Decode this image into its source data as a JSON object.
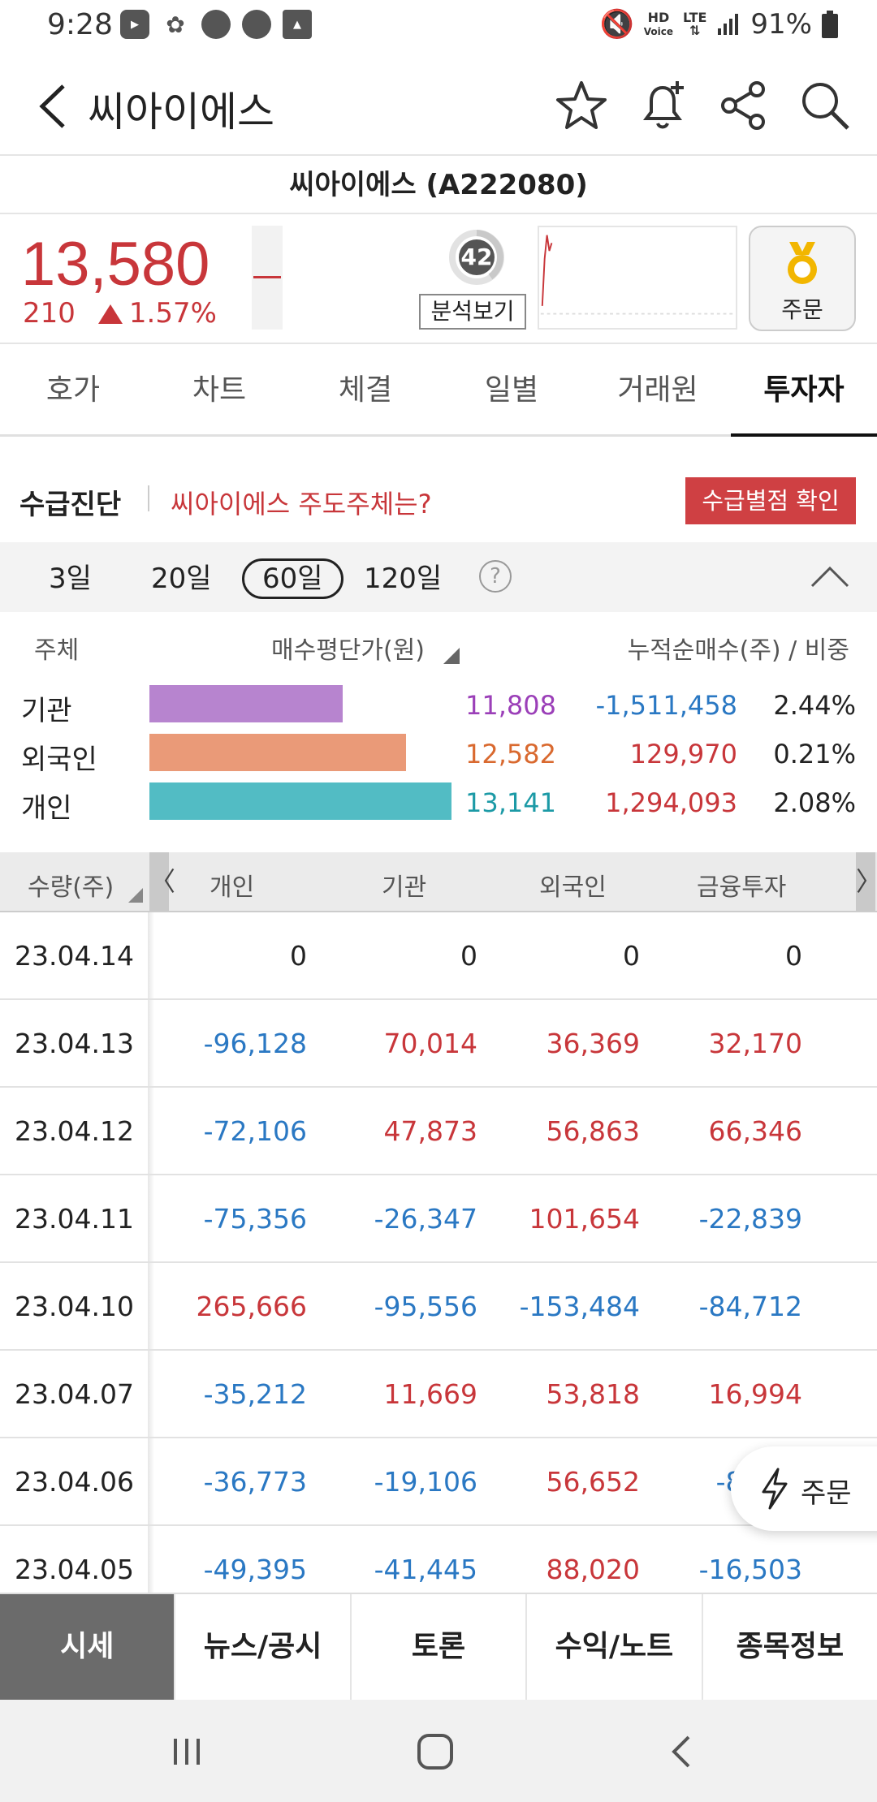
{
  "status_bar": {
    "time": "9:28",
    "battery": "91%",
    "hd_label": "HD",
    "voice_label": "Voice",
    "lte_label": "LTE"
  },
  "header": {
    "title": "씨아이에스"
  },
  "stock": {
    "name_code": "씨아이에스 (A222080)",
    "price": "13,580",
    "change": "210",
    "change_pct": "1.57%",
    "score": "42",
    "analysis_label": "분석보기",
    "order_label": "주문"
  },
  "tabs": [
    "호가",
    "차트",
    "체결",
    "일별",
    "거래원",
    "투자자"
  ],
  "active_tab": "투자자",
  "diagnosis": {
    "title": "수급진단",
    "question": "씨아이에스 주도주체는?",
    "button": "수급별점 확인"
  },
  "periods": {
    "items": [
      "3일",
      "20일",
      "60일",
      "120일"
    ],
    "selected": "60일",
    "help": "?"
  },
  "summary": {
    "col_subject": "주체",
    "col_avg": "매수평단가(원)",
    "col_net": "누적순매수(주) / 비중",
    "rows": [
      {
        "name": "기관",
        "avg": "11,808",
        "net": "-1,511,458",
        "ratio": "2.44%",
        "bar_fraction": 0.64,
        "color": "#b784cf",
        "avg_color": "#9b3fb8"
      },
      {
        "name": "외국인",
        "avg": "12,582",
        "net": "129,970",
        "ratio": "0.21%",
        "bar_fraction": 0.85,
        "color": "#ea9a78",
        "avg_color": "#d9692f"
      },
      {
        "name": "개인",
        "avg": "13,141",
        "net": "1,294,093",
        "ratio": "2.08%",
        "bar_fraction": 1.0,
        "color": "#52bcc4",
        "avg_color": "#1c9aa6"
      }
    ]
  },
  "table": {
    "header": {
      "qty": "수량(주)",
      "cols": [
        "개인",
        "기관",
        "외국인",
        "금융투자"
      ],
      "prev": "〈",
      "next": "〉"
    },
    "rows": [
      {
        "date": "23.04.14",
        "vals": [
          "0",
          "0",
          "0",
          "0"
        ]
      },
      {
        "date": "23.04.13",
        "vals": [
          "-96,128",
          "70,014",
          "36,369",
          "32,170"
        ]
      },
      {
        "date": "23.04.12",
        "vals": [
          "-72,106",
          "47,873",
          "56,863",
          "66,346"
        ]
      },
      {
        "date": "23.04.11",
        "vals": [
          "-75,356",
          "-26,347",
          "101,654",
          "-22,839"
        ]
      },
      {
        "date": "23.04.10",
        "vals": [
          "265,666",
          "-95,556",
          "-153,484",
          "-84,712"
        ]
      },
      {
        "date": "23.04.07",
        "vals": [
          "-35,212",
          "11,669",
          "53,818",
          "16,994"
        ]
      },
      {
        "date": "23.04.06",
        "vals": [
          "-36,773",
          "-19,106",
          "56,652",
          "-8,470"
        ]
      },
      {
        "date": "23.04.05",
        "vals": [
          "-49,395",
          "-41,445",
          "88,020",
          "-16,503"
        ]
      }
    ]
  },
  "float_order": "주문",
  "bottom_nav": [
    "시세",
    "뉴스/공시",
    "토론",
    "수익/노트",
    "종목정보"
  ],
  "bottom_active": "시세",
  "colors": {
    "up": "#c8363a",
    "down": "#2a78c3",
    "accent_button": "#cf4043"
  }
}
